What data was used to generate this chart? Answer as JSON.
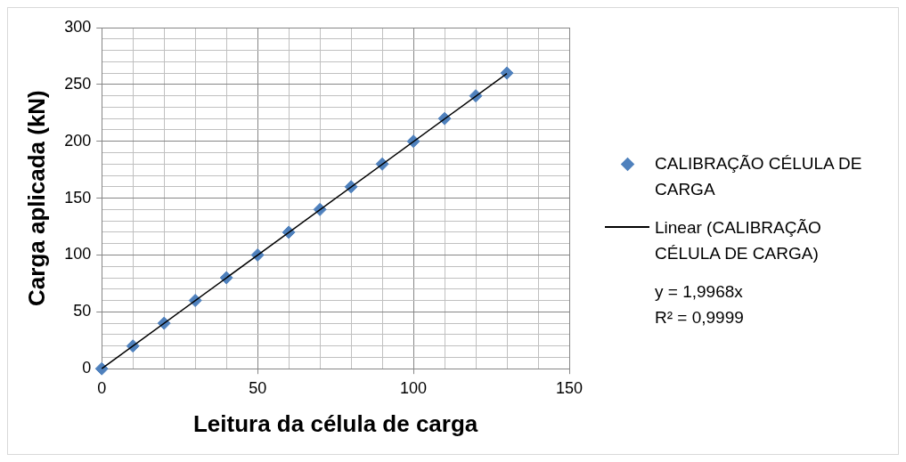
{
  "chart_data": {
    "type": "scatter",
    "xlabel": "Leitura da célula de carga",
    "ylabel": "Carga aplicada (kN)",
    "xlim": [
      0,
      150
    ],
    "xticks": [
      0,
      {
        "value": 10,
        "label": null
      },
      {
        "value": 20,
        "label": null
      },
      {
        "value": 30,
        "label": null
      },
      {
        "value": 40,
        "label": null
      },
      50,
      {
        "value": 60,
        "label": null
      },
      {
        "value": 70,
        "label": null
      },
      {
        "value": 80,
        "label": null
      },
      {
        "value": 90,
        "label": null
      },
      100,
      {
        "value": 110,
        "label": null
      },
      {
        "value": 120,
        "label": null
      },
      {
        "value": 130,
        "label": null
      },
      {
        "value": 140,
        "label": null
      },
      150
    ],
    "ylim": [
      0,
      300
    ],
    "yticks": [
      0,
      {
        "value": 10,
        "label": null
      },
      {
        "value": 20,
        "label": null
      },
      {
        "value": 30,
        "label": null
      },
      {
        "value": 40,
        "label": null
      },
      50,
      {
        "value": 60,
        "label": null
      },
      {
        "value": 70,
        "label": null
      },
      {
        "value": 80,
        "label": null
      },
      {
        "value": 90,
        "label": null
      },
      100,
      {
        "value": 110,
        "label": null
      },
      {
        "value": 120,
        "label": null
      },
      {
        "value": 130,
        "label": null
      },
      {
        "value": 140,
        "label": null
      },
      150,
      {
        "value": 160,
        "label": null
      },
      {
        "value": 170,
        "label": null
      },
      {
        "value": 180,
        "label": null
      },
      {
        "value": 190,
        "label": null
      },
      200,
      {
        "value": 210,
        "label": null
      },
      {
        "value": 220,
        "label": null
      },
      {
        "value": 230,
        "label": null
      },
      {
        "value": 240,
        "label": null
      },
      250,
      {
        "value": 260,
        "label": null
      },
      {
        "value": 270,
        "label": null
      },
      {
        "value": 280,
        "label": null
      },
      {
        "value": 290,
        "label": null
      },
      300
    ],
    "grid": true,
    "legend": "right",
    "series": [
      {
        "type": "scatter",
        "name": "CALIBRAÇÃO CÉLULA DE CARGA",
        "color": "#4f81bd",
        "marker": "diamond",
        "x": [
          0,
          10,
          20,
          30,
          40,
          50,
          60,
          70,
          80,
          90,
          100,
          110,
          120,
          130
        ],
        "values": [
          0,
          20,
          40,
          60,
          80,
          100,
          120,
          140,
          160,
          180,
          200,
          220,
          240,
          260
        ]
      },
      {
        "type": "line",
        "name": "Linear (CALIBRAÇÃO CÉLULA DE CARGA)",
        "color": "#000000",
        "marker": "none",
        "x": [
          0,
          130
        ],
        "values": [
          0,
          259.6
        ]
      }
    ],
    "annotations": [
      "y = 1,9968x",
      "R² = 0,9999"
    ]
  }
}
